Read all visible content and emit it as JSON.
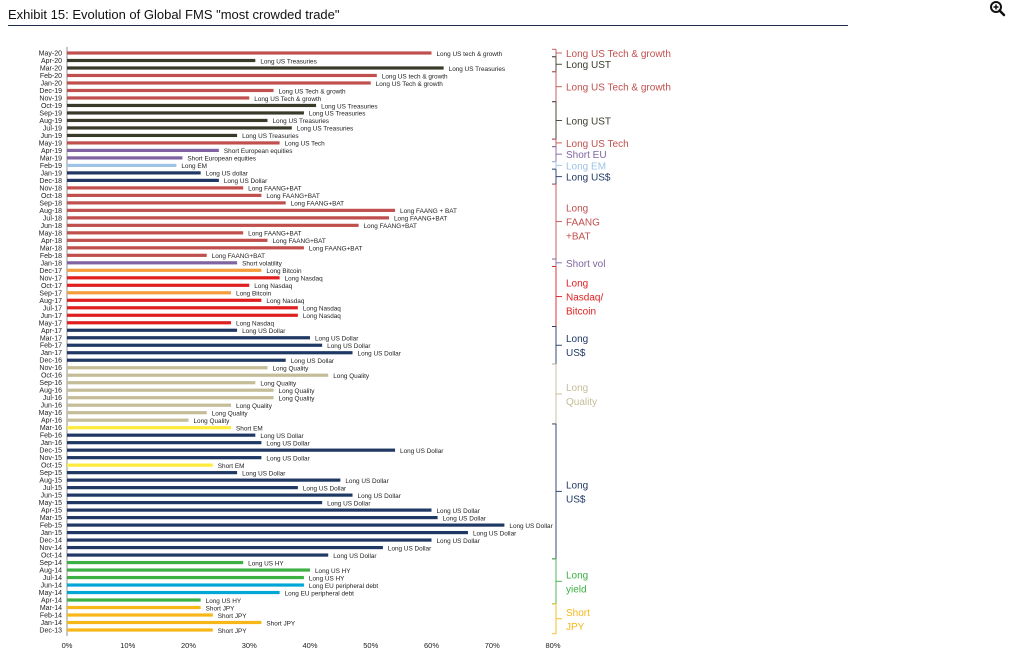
{
  "page": {
    "title": "Exhibit 15: Evolution of Global FMS \"most crowded trade\"",
    "zoom_icon": "zoom-in-icon"
  },
  "chart_data": {
    "type": "bar",
    "orientation": "horizontal",
    "title": "Exhibit 15: Evolution of Global FMS \"most crowded trade\"",
    "xlim": [
      0,
      80
    ],
    "x_ticks": [
      "0%",
      "10%",
      "20%",
      "30%",
      "40%",
      "50%",
      "60%",
      "70%",
      "80%"
    ],
    "bars": [
      {
        "month": "May-20",
        "value": 60,
        "label": "Long US tech & growth",
        "color": "#c0504d"
      },
      {
        "month": "Apr-20",
        "value": 31,
        "label": "Long US Treasuries",
        "color": "#3a3a2a"
      },
      {
        "month": "Mar-20",
        "value": 62,
        "label": "Long US Treasuries",
        "color": "#3a3a2a"
      },
      {
        "month": "Feb-20",
        "value": 51,
        "label": "Long US tech & growth",
        "color": "#c0504d"
      },
      {
        "month": "Jan-20",
        "value": 50,
        "label": "Long US Tech & growth",
        "color": "#c0504d"
      },
      {
        "month": "Dec-19",
        "value": 34,
        "label": "Long US Tech & growth",
        "color": "#c0504d"
      },
      {
        "month": "Nov-19",
        "value": 30,
        "label": "Long US Tech & growth",
        "color": "#c0504d"
      },
      {
        "month": "Oct-19",
        "value": 41,
        "label": "Long US Treasuries",
        "color": "#3a3a2a"
      },
      {
        "month": "Sep-19",
        "value": 39,
        "label": "Long US Treasuries",
        "color": "#3a3a2a"
      },
      {
        "month": "Aug-19",
        "value": 33,
        "label": "Long US Treasuries",
        "color": "#3a3a2a"
      },
      {
        "month": "Jul-19",
        "value": 37,
        "label": "Long US Treasuries",
        "color": "#3a3a2a"
      },
      {
        "month": "Jun-19",
        "value": 28,
        "label": "Long US Treasuries",
        "color": "#3a3a2a"
      },
      {
        "month": "May-19",
        "value": 35,
        "label": "Long US Tech",
        "color": "#c0504d"
      },
      {
        "month": "Apr-19",
        "value": 25,
        "label": "Short European equities",
        "color": "#8064a2"
      },
      {
        "month": "Mar-19",
        "value": 19,
        "label": "Short European equities",
        "color": "#8064a2"
      },
      {
        "month": "Feb-19",
        "value": 18,
        "label": "Long EM",
        "color": "#9dc3e6"
      },
      {
        "month": "Jan-19",
        "value": 22,
        "label": "Long US dollar",
        "color": "#1f3864"
      },
      {
        "month": "Dec-18",
        "value": 25,
        "label": "Long US Dollar",
        "color": "#1f3864"
      },
      {
        "month": "Nov-18",
        "value": 29,
        "label": "Long FAANG+BAT",
        "color": "#c0504d"
      },
      {
        "month": "Oct-18",
        "value": 32,
        "label": "Long FAANG+BAT",
        "color": "#c0504d"
      },
      {
        "month": "Sep-18",
        "value": 36,
        "label": "Long FAANG+BAT",
        "color": "#c0504d"
      },
      {
        "month": "Aug-18",
        "value": 54,
        "label": "Long FAANG + BAT",
        "color": "#c0504d"
      },
      {
        "month": "Jul-18",
        "value": 53,
        "label": "Long FAANG+BAT",
        "color": "#c0504d"
      },
      {
        "month": "Jun-18",
        "value": 48,
        "label": "Long FAANG+BAT",
        "color": "#c0504d"
      },
      {
        "month": "May-18",
        "value": 29,
        "label": "Long FAANG+BAT",
        "color": "#c0504d"
      },
      {
        "month": "Apr-18",
        "value": 33,
        "label": "Long FAANG+BAT",
        "color": "#c0504d"
      },
      {
        "month": "Mar-18",
        "value": 39,
        "label": "Long FAANG+BAT",
        "color": "#c0504d"
      },
      {
        "month": "Feb-18",
        "value": 23,
        "label": "Long FAANG+BAT",
        "color": "#c0504d"
      },
      {
        "month": "Jan-18",
        "value": 28,
        "label": "Short volatility",
        "color": "#8064a2"
      },
      {
        "month": "Dec-17",
        "value": 32,
        "label": "Long Bitcoin",
        "color": "#f59d3d"
      },
      {
        "month": "Nov-17",
        "value": 35,
        "label": "Long Nasdaq",
        "color": "#e02020"
      },
      {
        "month": "Oct-17",
        "value": 30,
        "label": "Long Nasdaq",
        "color": "#e02020"
      },
      {
        "month": "Sep-17",
        "value": 27,
        "label": "Long Bitcoin",
        "color": "#f59d3d"
      },
      {
        "month": "Aug-17",
        "value": 32,
        "label": "Long Nasdaq",
        "color": "#e02020"
      },
      {
        "month": "Jul-17",
        "value": 38,
        "label": "Long Nasdaq",
        "color": "#e02020"
      },
      {
        "month": "Jun-17",
        "value": 38,
        "label": "Long Nasdaq",
        "color": "#e02020"
      },
      {
        "month": "May-17",
        "value": 27,
        "label": "Long Nasdaq",
        "color": "#e02020"
      },
      {
        "month": "Apr-17",
        "value": 28,
        "label": "Long US Dollar",
        "color": "#1f3864"
      },
      {
        "month": "Mar-17",
        "value": 40,
        "label": "Long US Dollar",
        "color": "#1f3864"
      },
      {
        "month": "Feb-17",
        "value": 42,
        "label": "Long US Dollar",
        "color": "#1f3864"
      },
      {
        "month": "Jan-17",
        "value": 47,
        "label": "Long US Dollar",
        "color": "#1f3864"
      },
      {
        "month": "Dec-16",
        "value": 36,
        "label": "Long US Dollar",
        "color": "#1f3864"
      },
      {
        "month": "Nov-16",
        "value": 33,
        "label": "Long Quality",
        "color": "#c4bd97"
      },
      {
        "month": "Oct-16",
        "value": 43,
        "label": "Long Quality",
        "color": "#c4bd97"
      },
      {
        "month": "Sep-16",
        "value": 31,
        "label": "Long Quality",
        "color": "#c4bd97"
      },
      {
        "month": "Aug-16",
        "value": 34,
        "label": "Long Quality",
        "color": "#c4bd97"
      },
      {
        "month": "Jul-16",
        "value": 34,
        "label": "Long Quality",
        "color": "#c4bd97"
      },
      {
        "month": "Jun-16",
        "value": 27,
        "label": "Long Quality",
        "color": "#c4bd97"
      },
      {
        "month": "May-16",
        "value": 23,
        "label": "Long Quality",
        "color": "#c4bd97"
      },
      {
        "month": "Apr-16",
        "value": 20,
        "label": "Long Quality",
        "color": "#c4bd97"
      },
      {
        "month": "Mar-16",
        "value": 27,
        "label": "Short EM",
        "color": "#ffeb3b"
      },
      {
        "month": "Feb-16",
        "value": 31,
        "label": "Long US Dollar",
        "color": "#1f3864"
      },
      {
        "month": "Jan-16",
        "value": 32,
        "label": "Long US Dollar",
        "color": "#1f3864"
      },
      {
        "month": "Dec-15",
        "value": 54,
        "label": "Long US Dollar",
        "color": "#1f3864"
      },
      {
        "month": "Nov-15",
        "value": 32,
        "label": "Long US Dollar",
        "color": "#1f3864"
      },
      {
        "month": "Oct-15",
        "value": 24,
        "label": "Short EM",
        "color": "#ffeb3b"
      },
      {
        "month": "Sep-15",
        "value": 28,
        "label": "Long US Dollar",
        "color": "#1f3864"
      },
      {
        "month": "Aug-15",
        "value": 45,
        "label": "Long US Dollar",
        "color": "#1f3864"
      },
      {
        "month": "Jul-15",
        "value": 38,
        "label": "Long US Dollar",
        "color": "#1f3864"
      },
      {
        "month": "Jun-15",
        "value": 47,
        "label": "Long US Dollar",
        "color": "#1f3864"
      },
      {
        "month": "May-15",
        "value": 42,
        "label": "Long US Dollar",
        "color": "#1f3864"
      },
      {
        "month": "Apr-15",
        "value": 60,
        "label": "Long US Dollar",
        "color": "#1f3864"
      },
      {
        "month": "Mar-15",
        "value": 61,
        "label": "Long US Dollar",
        "color": "#1f3864"
      },
      {
        "month": "Feb-15",
        "value": 72,
        "label": "Long US Dollar",
        "color": "#1f3864"
      },
      {
        "month": "Jan-15",
        "value": 66,
        "label": "Long US Dollar",
        "color": "#1f3864"
      },
      {
        "month": "Dec-14",
        "value": 60,
        "label": "Long US Dollar",
        "color": "#1f3864"
      },
      {
        "month": "Nov-14",
        "value": 52,
        "label": "Long US Dollar",
        "color": "#1f3864"
      },
      {
        "month": "Oct-14",
        "value": 43,
        "label": "Long US Dollar",
        "color": "#1f3864"
      },
      {
        "month": "Sep-14",
        "value": 29,
        "label": "Long US HY",
        "color": "#3cb043"
      },
      {
        "month": "Aug-14",
        "value": 40,
        "label": "Long US HY",
        "color": "#3cb043"
      },
      {
        "month": "Jul-14",
        "value": 39,
        "label": "Long US HY",
        "color": "#3cb043"
      },
      {
        "month": "Jun-14",
        "value": 39,
        "label": "Long EU peripheral debt",
        "color": "#00a6d6"
      },
      {
        "month": "May-14",
        "value": 35,
        "label": "Long EU peripheral debt",
        "color": "#00a6d6"
      },
      {
        "month": "Apr-14",
        "value": 22,
        "label": "Long US HY",
        "color": "#3cb043"
      },
      {
        "month": "Mar-14",
        "value": 22,
        "label": "Short JPY",
        "color": "#f7b718"
      },
      {
        "month": "Feb-14",
        "value": 24,
        "label": "Short JPY",
        "color": "#f7b718"
      },
      {
        "month": "Jan-14",
        "value": 32,
        "label": "Short JPY",
        "color": "#f7b718"
      },
      {
        "month": "Dec-13",
        "value": 24,
        "label": "Short JPY",
        "color": "#f7b718"
      }
    ],
    "groups": [
      {
        "from": 0,
        "to": 0,
        "label": [
          "Long US Tech & growth"
        ],
        "color": "#c0504d"
      },
      {
        "from": 1,
        "to": 2,
        "label": [
          "Long UST"
        ],
        "color": "#3a3a2a"
      },
      {
        "from": 3,
        "to": 6,
        "label": [
          "Long US Tech & growth"
        ],
        "color": "#c0504d"
      },
      {
        "from": 7,
        "to": 11,
        "label": [
          "Long UST"
        ],
        "color": "#3a3a2a"
      },
      {
        "from": 12,
        "to": 12,
        "label": [
          "Long US Tech"
        ],
        "color": "#c0504d"
      },
      {
        "from": 13,
        "to": 14,
        "label": [
          "Short EU"
        ],
        "color": "#8064a2"
      },
      {
        "from": 15,
        "to": 15,
        "label": [
          "Long EM"
        ],
        "color": "#9dc3e6"
      },
      {
        "from": 16,
        "to": 17,
        "label": [
          "Long US$"
        ],
        "color": "#1f3864"
      },
      {
        "from": 18,
        "to": 27,
        "label": [
          "Long",
          "FAANG",
          "+BAT"
        ],
        "color": "#c0504d"
      },
      {
        "from": 28,
        "to": 28,
        "label": [
          "Short vol"
        ],
        "color": "#8064a2"
      },
      {
        "from": 29,
        "to": 36,
        "label": [
          "Long",
          "Nasdaq/",
          "Bitcoin"
        ],
        "color": "#e02020"
      },
      {
        "from": 37,
        "to": 41,
        "label": [
          "Long",
          "US$"
        ],
        "color": "#1f3864"
      },
      {
        "from": 42,
        "to": 49,
        "label": [
          "Long",
          "Quality"
        ],
        "color": "#c4bd97"
      },
      {
        "from": 50,
        "to": 67,
        "label": [
          "Long",
          "US$"
        ],
        "color": "#1f3864"
      },
      {
        "from": 68,
        "to": 73,
        "label": [
          "Long",
          "yield"
        ],
        "color": "#3cb043"
      },
      {
        "from": 74,
        "to": 77,
        "label": [
          "Short",
          "JPY"
        ],
        "color": "#f7b718"
      }
    ]
  }
}
